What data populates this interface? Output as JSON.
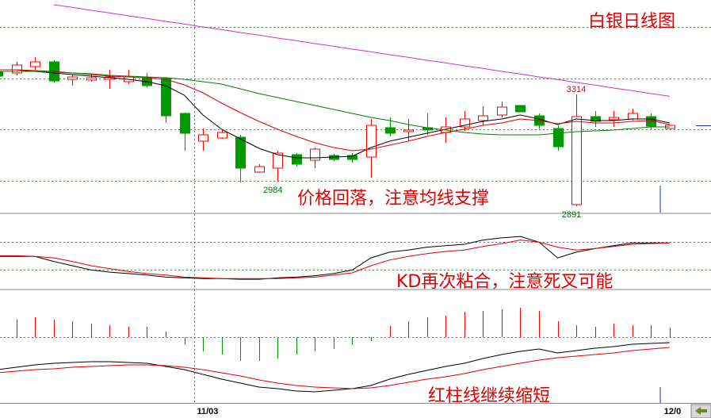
{
  "chart_data": [
    {
      "type": "candlestick",
      "title": "白银日线图",
      "annotation": "价格回落，注意均线支撑",
      "categories": [
        null,
        null,
        null,
        null,
        null,
        null,
        null,
        null,
        null,
        null,
        null,
        "11/03",
        null,
        null,
        null,
        null,
        null,
        null,
        null,
        null,
        null,
        null,
        null,
        null,
        null,
        null,
        null,
        null,
        null,
        null,
        null,
        null,
        null,
        null,
        null,
        null,
        "12/0"
      ],
      "open": [
        3401,
        3395,
        3419,
        3437,
        3371,
        3368,
        3371,
        3362,
        3377,
        3374,
        3242,
        3137,
        3149,
        3152,
        3020,
        3035,
        3086,
        3065,
        3083,
        3083,
        3077,
        3188,
        3173,
        3188,
        3170,
        3191,
        3215,
        3236,
        3272,
        3233,
        3185,
        2897,
        3230,
        3218,
        3221,
        3230,
        3185
      ],
      "high": [
        3413,
        3437,
        3455,
        3443,
        3389,
        3389,
        3407,
        3407,
        3395,
        3380,
        3245,
        3185,
        3182,
        3161,
        3050,
        3101,
        3092,
        3113,
        3089,
        3092,
        3221,
        3227,
        3221,
        3242,
        3227,
        3251,
        3269,
        3287,
        3272,
        3242,
        3197,
        3314,
        3251,
        3251,
        3260,
        3242,
        3197
      ],
      "low": [
        3380,
        3386,
        3407,
        3359,
        3347,
        3362,
        3335,
        3353,
        3341,
        3206,
        3101,
        3101,
        3146,
        2981,
        3017,
        2984,
        3041,
        3035,
        3062,
        3056,
        2999,
        3155,
        3137,
        3161,
        3131,
        3176,
        3197,
        3227,
        3248,
        3185,
        3101,
        2891,
        3191,
        3191,
        3215,
        3182,
        3185
      ],
      "close": [
        3383,
        3425,
        3437,
        3365,
        3380,
        3377,
        3380,
        3380,
        3347,
        3233,
        3167,
        3161,
        3170,
        3035,
        3041,
        3092,
        3050,
        3107,
        3068,
        3068,
        3197,
        3167,
        3179,
        3179,
        3191,
        3221,
        3233,
        3266,
        3248,
        3197,
        3116,
        3230,
        3212,
        3227,
        3242,
        3194,
        3197
      ],
      "up_color": "#ff0000",
      "down_color": "#009900",
      "point_labels": [
        3314,
        2984,
        2891
      ],
      "series": [
        {
          "color": "#000000",
          "values": [
            3407,
            3407,
            3401,
            3395,
            3389,
            3383,
            3377,
            3371,
            3362,
            3347,
            3311,
            3236,
            3182,
            3146,
            3110,
            3086,
            3074,
            3074,
            3077,
            3080,
            3113,
            3137,
            3152,
            3167,
            3182,
            3197,
            3212,
            3221,
            3236,
            3221,
            3200,
            3221,
            3215,
            3215,
            3221,
            3221,
            3206
          ]
        },
        {
          "color": "#e00000",
          "values": [
            3407,
            3407,
            3404,
            3401,
            3395,
            3389,
            3383,
            3380,
            3377,
            3371,
            3350,
            3320,
            3281,
            3245,
            3212,
            3182,
            3155,
            3131,
            3113,
            3101,
            3107,
            3122,
            3137,
            3155,
            3170,
            3182,
            3197,
            3206,
            3221,
            3215,
            3203,
            3212,
            3206,
            3206,
            3212,
            3215,
            3200
          ]
        },
        {
          "color": "#008000",
          "values": [
            3401,
            3401,
            3401,
            3398,
            3395,
            3392,
            3386,
            3383,
            3380,
            3377,
            3371,
            3362,
            3353,
            3335,
            3317,
            3302,
            3287,
            3272,
            3257,
            3242,
            3227,
            3215,
            3200,
            3188,
            3179,
            3170,
            3164,
            3161,
            3161,
            3161,
            3167,
            3173,
            3176,
            3179,
            3185,
            3191,
            3191
          ]
        },
        {
          "color": "#cc33cc",
          "values": [
            null,
            null,
            null,
            3653,
            3643,
            3632,
            3622,
            3611,
            3601,
            3590,
            3580,
            3569,
            3559,
            3548,
            3538,
            3527,
            3517,
            3506,
            3496,
            3485,
            3475,
            3464,
            3454,
            3443,
            3433,
            3422,
            3412,
            3401,
            3391,
            3380,
            3370,
            3359,
            3349,
            3338,
            3328,
            3317,
            3307
          ]
        }
      ],
      "ylim": [
        2867,
        3671
      ],
      "grid_lines": [
        3569,
        3374,
        3182,
        2987
      ]
    },
    {
      "type": "line",
      "annotation": "KD再次粘合，注意死叉可能",
      "series": [
        {
          "color": "#000000",
          "values": [
            43,
            43,
            43,
            36,
            30,
            24,
            21,
            19,
            17,
            14,
            13,
            12,
            12,
            11,
            11,
            13,
            14,
            16,
            19,
            24,
            41,
            49,
            52,
            56,
            58,
            60,
            66,
            69,
            71,
            63,
            41,
            49,
            54,
            58,
            62,
            62,
            62
          ]
        },
        {
          "color": "#e00000",
          "values": [
            44,
            44,
            43,
            41,
            36,
            30,
            26,
            22,
            19,
            17,
            14,
            13,
            12,
            12,
            12,
            12,
            13,
            14,
            17,
            20,
            30,
            38,
            43,
            47,
            50,
            52,
            57,
            61,
            66,
            63,
            56,
            52,
            54,
            57,
            60,
            61,
            62
          ]
        }
      ],
      "ylim": [
        0,
        100
      ],
      "grid_lines": [
        63,
        24
      ]
    },
    {
      "type": "macd",
      "annotation": "红柱线继续缩短",
      "values": [
        null,
        22,
        25,
        22,
        20,
        17,
        15,
        13,
        13,
        7,
        -10,
        -18,
        -22,
        -30,
        -30,
        -27,
        -22,
        -18,
        -15,
        -10,
        -5,
        14,
        20,
        25,
        27,
        32,
        33,
        35,
        37,
        33,
        20,
        15,
        13,
        17,
        15,
        15,
        12
      ],
      "up_color": "#ff0000",
      "down_color": "#009900",
      "series": [
        {
          "color": "#000000",
          "values": [
            -41,
            -38,
            -35,
            -33,
            -32,
            -31,
            -31,
            -32,
            -33,
            -37,
            -41,
            -47,
            -53,
            -58,
            -63,
            -65,
            -68,
            -69,
            -67,
            -65,
            -61,
            -53,
            -47,
            -42,
            -37,
            -33,
            -27,
            -22,
            -18,
            -15,
            -20,
            -17,
            -14,
            -12,
            -9,
            -8,
            -7
          ]
        },
        {
          "color": "#e00000",
          "values": [
            -45,
            -43,
            -41,
            -40,
            -38,
            -37,
            -36,
            -35,
            -35,
            -36,
            -38,
            -41,
            -45,
            -49,
            -54,
            -58,
            -61,
            -63,
            -64,
            -65,
            -64,
            -61,
            -57,
            -53,
            -50,
            -46,
            -41,
            -37,
            -33,
            -29,
            -26,
            -24,
            -22,
            -20,
            -17,
            -15,
            -13
          ]
        }
      ],
      "ylim": [
        -83,
        58
      ],
      "grid_lines": [
        0
      ]
    }
  ]
}
